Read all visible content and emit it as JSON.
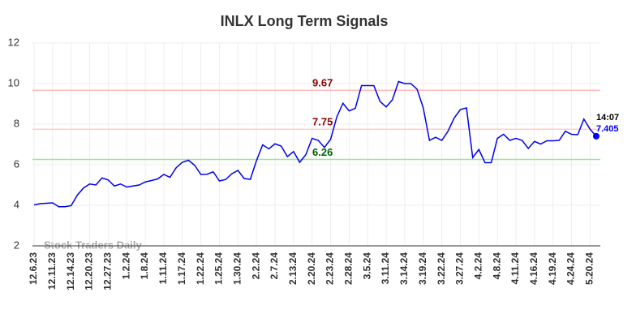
{
  "chart_data": {
    "type": "line",
    "title": "INLX Long Term Signals",
    "categories": [
      "12.6.23",
      null,
      null,
      "12.11.23",
      null,
      null,
      "12.14.23",
      null,
      null,
      "12.20.23",
      null,
      null,
      "12.27.23",
      null,
      null,
      "1.2.24",
      null,
      null,
      "1.8.24",
      null,
      null,
      "1.11.24",
      null,
      null,
      "1.17.24",
      null,
      null,
      "1.22.24",
      null,
      null,
      "1.25.24",
      null,
      null,
      "1.30.24",
      null,
      null,
      "2.2.24",
      null,
      null,
      "2.7.24",
      null,
      null,
      "2.13.24",
      null,
      null,
      "2.20.24",
      null,
      null,
      "2.23.24",
      null,
      null,
      "2.28.24",
      null,
      null,
      "3.5.24",
      null,
      null,
      "3.11.24",
      null,
      null,
      "3.14.24",
      null,
      null,
      "3.19.24",
      null,
      null,
      "3.22.24",
      null,
      null,
      "3.27.24",
      null,
      null,
      "4.2.24",
      null,
      null,
      "4.8.24",
      null,
      null,
      "4.11.24",
      null,
      null,
      "4.16.24",
      null,
      null,
      "4.19.24",
      null,
      null,
      "4.24.24",
      null,
      null,
      "5.20.24",
      null
    ],
    "values": [
      4.02,
      4.08,
      4.1,
      4.12,
      3.93,
      3.93,
      3.98,
      4.5,
      4.85,
      5.05,
      5.0,
      5.35,
      5.25,
      4.95,
      5.05,
      4.9,
      4.95,
      5.0,
      5.15,
      5.22,
      5.3,
      5.52,
      5.38,
      5.85,
      6.12,
      6.22,
      5.97,
      5.52,
      5.53,
      5.65,
      5.2,
      5.27,
      5.55,
      5.72,
      5.32,
      5.28,
      6.2,
      6.98,
      6.78,
      7.03,
      6.92,
      6.4,
      6.65,
      6.12,
      6.5,
      7.3,
      7.2,
      6.85,
      7.25,
      8.35,
      9.03,
      8.65,
      8.78,
      9.9,
      9.9,
      9.9,
      9.12,
      8.85,
      9.2,
      10.1,
      10.0,
      10.0,
      9.72,
      8.8,
      7.2,
      7.35,
      7.2,
      7.65,
      8.3,
      8.72,
      8.8,
      6.35,
      6.75,
      6.1,
      6.1,
      7.3,
      7.5,
      7.2,
      7.3,
      7.2,
      6.8,
      7.15,
      7.02,
      7.18,
      7.18,
      7.2,
      7.65,
      7.5,
      7.48,
      8.25,
      7.75,
      7.405
    ],
    "color": "#0000ee",
    "levels": [
      {
        "value": 9.67,
        "color": "#ffbbbb",
        "label_color": "#8b0000"
      },
      {
        "value": 7.75,
        "color": "#ffcccc",
        "label_color": "#8b0000"
      },
      {
        "value": 6.26,
        "color": "#90ee90",
        "label_color": "#006400"
      }
    ],
    "last_time": "14:07",
    "watermark": "Stock Traders Daily",
    "ylim": [
      2,
      12
    ],
    "yticks": [
      2,
      4,
      6,
      8,
      10,
      12
    ],
    "grid": true
  }
}
